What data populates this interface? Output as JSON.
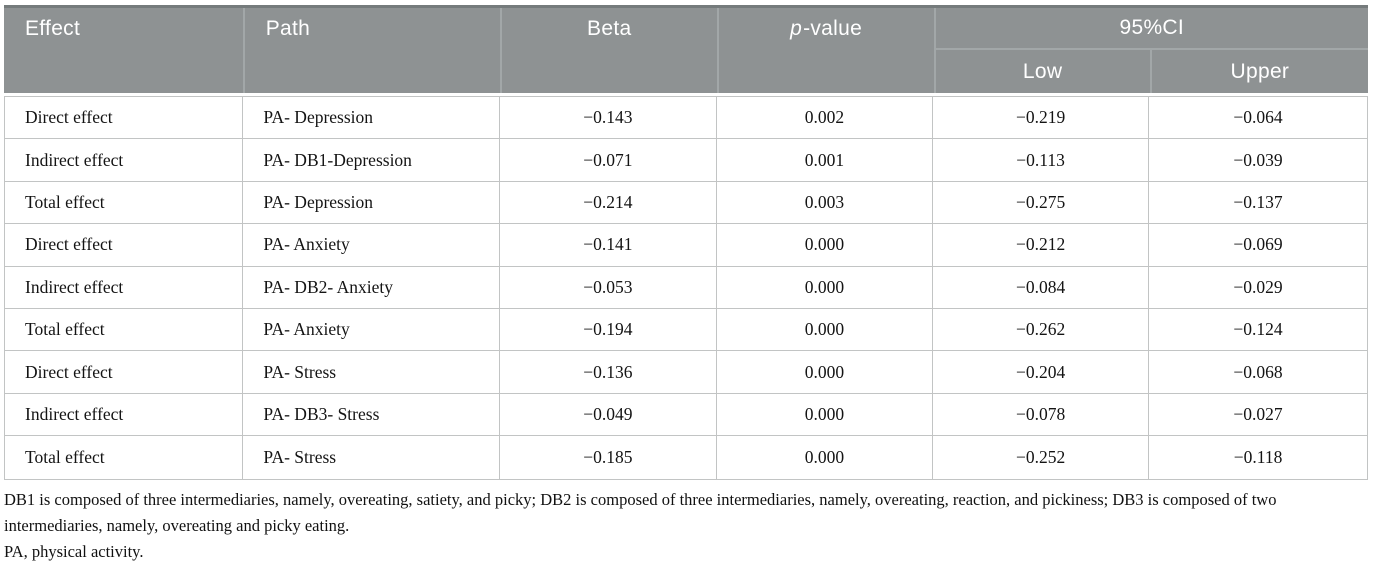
{
  "table": {
    "columns": {
      "effect": "Effect",
      "path": "Path",
      "beta": "Beta",
      "p_italic": "p",
      "p_rest": "-value",
      "ci": "95%CI",
      "low": "Low",
      "upper": "Upper"
    },
    "rows": [
      {
        "effect": "Direct effect",
        "path": "PA- Depression",
        "beta": "−0.143",
        "p": "0.002",
        "low": "−0.219",
        "upper": "−0.064"
      },
      {
        "effect": "Indirect effect",
        "path": "PA- DB1-Depression",
        "beta": "−0.071",
        "p": "0.001",
        "low": "−0.113",
        "upper": "−0.039"
      },
      {
        "effect": "Total effect",
        "path": "PA- Depression",
        "beta": "−0.214",
        "p": "0.003",
        "low": "−0.275",
        "upper": "−0.137"
      },
      {
        "effect": "Direct effect",
        "path": "PA- Anxiety",
        "beta": "−0.141",
        "p": "0.000",
        "low": "−0.212",
        "upper": "−0.069"
      },
      {
        "effect": "Indirect effect",
        "path": "PA- DB2- Anxiety",
        "beta": "−0.053",
        "p": "0.000",
        "low": "−0.084",
        "upper": "−0.029"
      },
      {
        "effect": "Total effect",
        "path": "PA- Anxiety",
        "beta": "−0.194",
        "p": "0.000",
        "low": "−0.262",
        "upper": "−0.124"
      },
      {
        "effect": "Direct effect",
        "path": "PA- Stress",
        "beta": "−0.136",
        "p": "0.000",
        "low": "−0.204",
        "upper": "−0.068"
      },
      {
        "effect": "Indirect effect",
        "path": "PA- DB3- Stress",
        "beta": "−0.049",
        "p": "0.000",
        "low": "−0.078",
        "upper": "−0.027"
      },
      {
        "effect": "Total effect",
        "path": "PA- Stress",
        "beta": "−0.185",
        "p": "0.000",
        "low": "−0.252",
        "upper": "−0.118"
      }
    ]
  },
  "footnotes": [
    "DB1 is composed of three intermediaries, namely, overeating, satiety, and picky; DB2 is composed of three intermediaries, namely, overeating, reaction, and pickiness; DB3 is composed of two intermediaries, namely, overeating and picky eating.",
    "PA, physical activity."
  ],
  "colors": {
    "header_bg": "#8e9293",
    "header_text": "#ffffff",
    "header_separator": "#a2a7a8",
    "header_top_line": "#757b7c",
    "body_border": "#c2c4c4",
    "body_text": "#141414"
  }
}
